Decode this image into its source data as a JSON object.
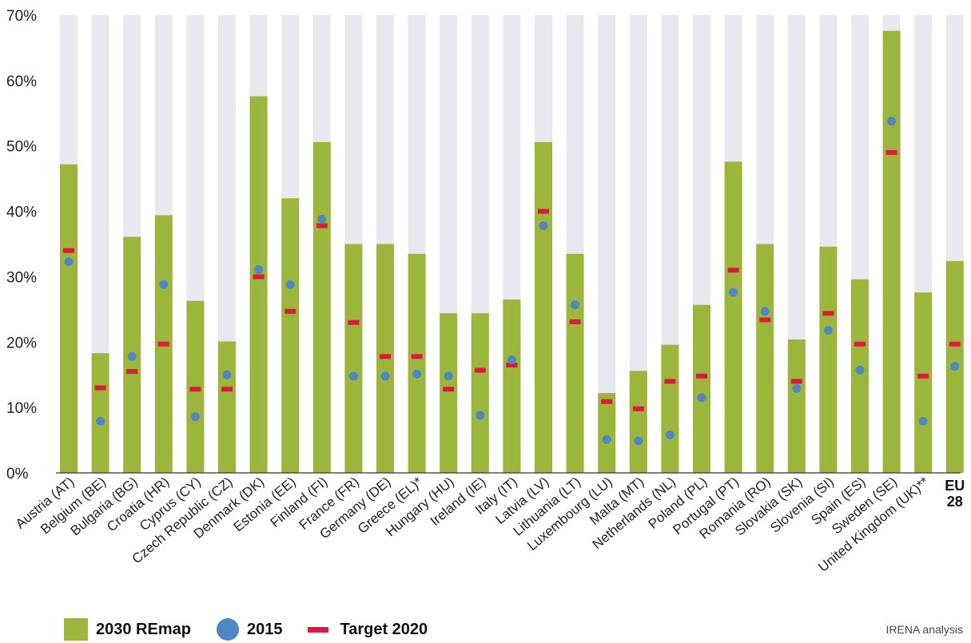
{
  "chart_data": {
    "type": "bar",
    "categories": [
      "Austria (AT)",
      "Belgium (BE)",
      "Bulgaria (BG)",
      "Croatia (HR)",
      "Cyprus (CY)",
      "Czech Republic (CZ)",
      "Denmark (DK)",
      "Estonia (EE)",
      "Finland (FI)",
      "France (FR)",
      "Germany (DE)",
      "Greece (EL)*",
      "Hungary (HU)",
      "Ireland (IE)",
      "Italy (IT)",
      "Latvia (LV)",
      "Lithuania (LT)",
      "Luxembourg (LU)",
      "Malta (MT)",
      "Netherlands (NL)",
      "Poland (PL)",
      "Portugal (PT)",
      "Romania (RO)",
      "Slovakia (SK)",
      "Slovenia (SI)",
      "Spain (ES)",
      "Sweden (SE)",
      "United Kingdom (UK)**",
      "EU 28"
    ],
    "series": [
      {
        "name": "2030 REmap",
        "values": [
          47.2,
          18.3,
          36.1,
          39.4,
          26.3,
          20.1,
          57.6,
          42.0,
          50.6,
          35.0,
          35.0,
          33.5,
          24.4,
          24.4,
          26.5,
          50.6,
          33.5,
          12.2,
          15.6,
          19.6,
          25.7,
          47.6,
          35.0,
          20.4,
          34.6,
          29.6,
          67.6,
          27.6,
          32.4
        ]
      },
      {
        "name": "2015",
        "values": [
          32.3,
          7.9,
          17.8,
          28.8,
          8.6,
          null,
          31.1,
          28.8,
          38.8,
          14.8,
          14.8,
          15.1,
          14.8,
          8.8,
          17.3,
          37.8,
          25.7,
          5.1,
          4.9,
          5.8,
          11.5,
          27.6,
          24.7,
          12.9,
          21.8,
          15.7,
          53.8,
          7.9,
          16.3
        ]
      },
      {
        "name": "Target 2020",
        "values": [
          34.0,
          13.0,
          15.5,
          19.7,
          12.8,
          12.8,
          30.0,
          24.7,
          37.8,
          23.0,
          17.8,
          17.8,
          12.8,
          15.7,
          16.5,
          40.0,
          23.1,
          10.9,
          9.8,
          14.0,
          14.8,
          31.0,
          23.4,
          14.0,
          24.4,
          19.7,
          49.0,
          14.8,
          19.7
        ]
      }
    ],
    "ylim": [
      0,
      70
    ],
    "ytick_labels": [
      "0%",
      "10%",
      "20%",
      "30%",
      "40%",
      "50%",
      "60%",
      "70%"
    ],
    "source_note": "IRENA analysis"
  },
  "extra_points": [
    {
      "category": "Czech Republic (CZ)",
      "series": "2015",
      "value": 15.0
    }
  ],
  "eu_label_lines": [
    "EU",
    "28"
  ],
  "colors": {
    "bar_fill": "#9cb63b",
    "bar_background": "#e8e8ee",
    "point_2015": "#4f86c6",
    "target_2020": "#e0173e",
    "axis": "#333333"
  },
  "legend": {
    "remap_label": "2030 REmap",
    "y2015_label": "2015",
    "target_label": "Target 2020"
  },
  "source": "IRENA analysis"
}
